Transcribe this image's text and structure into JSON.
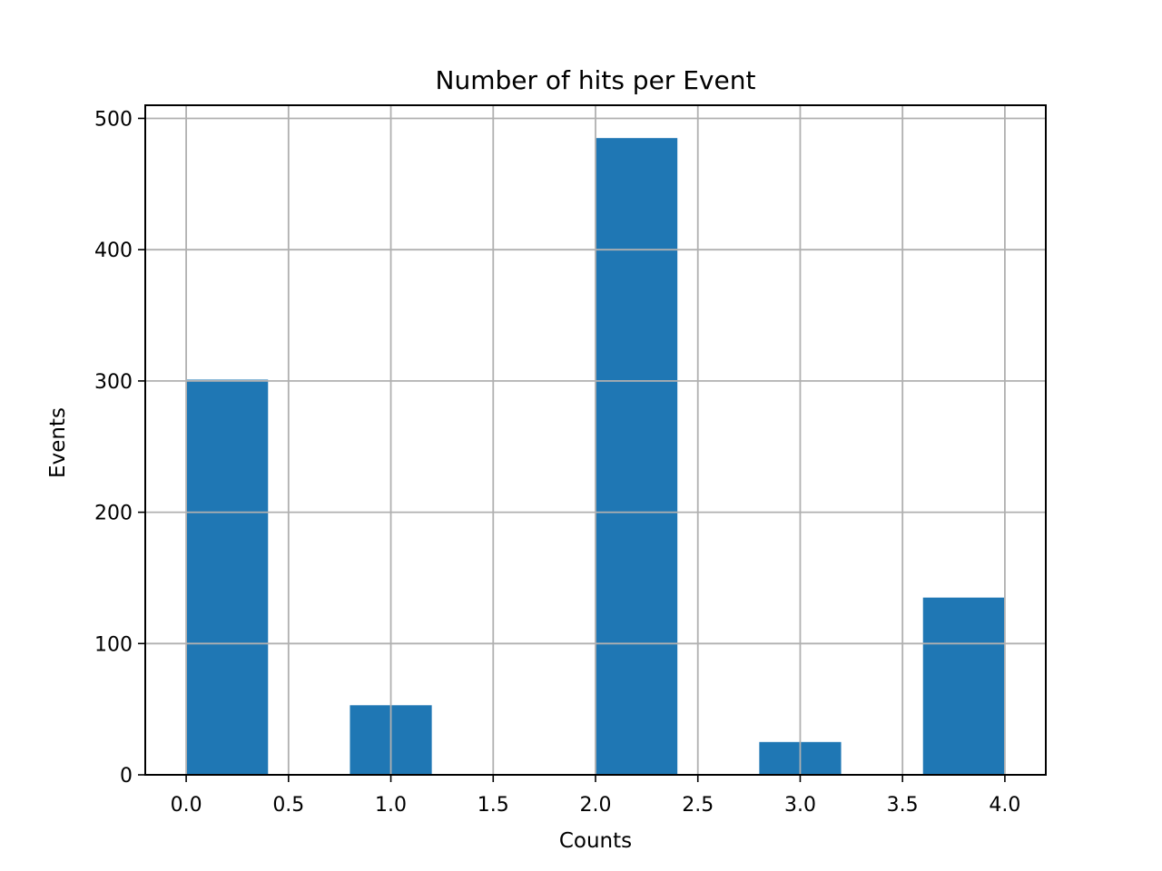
{
  "chart_data": {
    "type": "bar",
    "title": "Number of hits per Event",
    "xlabel": "Counts",
    "ylabel": "Events",
    "bins": [
      {
        "x0": 0.0,
        "x1": 0.4,
        "value": 301
      },
      {
        "x0": 0.4,
        "x1": 0.8,
        "value": 0
      },
      {
        "x0": 0.8,
        "x1": 1.2,
        "value": 53
      },
      {
        "x0": 1.2,
        "x1": 1.6,
        "value": 0
      },
      {
        "x0": 1.6,
        "x1": 2.0,
        "value": 0
      },
      {
        "x0": 2.0,
        "x1": 2.4,
        "value": 485
      },
      {
        "x0": 2.4,
        "x1": 2.8,
        "value": 0
      },
      {
        "x0": 2.8,
        "x1": 3.2,
        "value": 25
      },
      {
        "x0": 3.2,
        "x1": 3.6,
        "value": 0
      },
      {
        "x0": 3.6,
        "x1": 4.0,
        "value": 135
      }
    ],
    "xlim": [
      -0.2,
      4.2
    ],
    "ylim": [
      0,
      510
    ],
    "xticks": [
      "0.0",
      "0.5",
      "1.0",
      "1.5",
      "2.0",
      "2.5",
      "3.0",
      "3.5",
      "4.0"
    ],
    "yticks": [
      "0",
      "100",
      "200",
      "300",
      "400",
      "500"
    ],
    "grid": true,
    "bar_color": "#1f77b4"
  }
}
